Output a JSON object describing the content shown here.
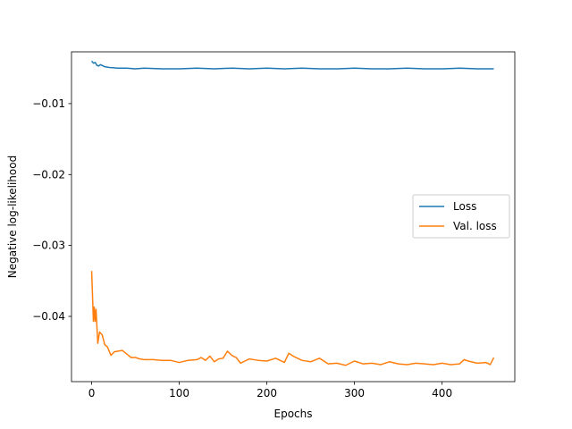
{
  "chart_data": {
    "type": "line",
    "xlabel": "Epochs",
    "ylabel": "Negative log-likelihood",
    "xlim": [
      -23,
      483
    ],
    "ylim": [
      -0.0492,
      -0.0027
    ],
    "xticks": [
      0,
      100,
      200,
      300,
      400
    ],
    "xtick_labels": [
      "0",
      "100",
      "200",
      "300",
      "400"
    ],
    "yticks": [
      -0.01,
      -0.02,
      -0.03,
      -0.04
    ],
    "ytick_labels": [
      "−0.01",
      "−0.02",
      "−0.03",
      "−0.04"
    ],
    "grid": false,
    "legend_position": "center-right",
    "series": [
      {
        "name": "Loss",
        "color": "#1f77b4",
        "x": [
          0,
          2,
          4,
          6,
          8,
          10,
          15,
          20,
          30,
          40,
          50,
          60,
          80,
          100,
          120,
          140,
          160,
          180,
          200,
          220,
          240,
          260,
          280,
          300,
          320,
          340,
          360,
          380,
          400,
          420,
          440,
          459
        ],
        "y": [
          -0.004,
          -0.0043,
          -0.0042,
          -0.0046,
          -0.0047,
          -0.0045,
          -0.0048,
          -0.0049,
          -0.005,
          -0.005,
          -0.0051,
          -0.005,
          -0.0051,
          -0.0051,
          -0.005,
          -0.0051,
          -0.005,
          -0.0051,
          -0.005,
          -0.0051,
          -0.005,
          -0.0051,
          -0.0051,
          -0.005,
          -0.0051,
          -0.0051,
          -0.005,
          -0.0051,
          -0.0051,
          -0.005,
          -0.0051,
          -0.0051
        ]
      },
      {
        "name": "Val. loss",
        "color": "#ff7f0e",
        "x": [
          0,
          2,
          3,
          4,
          5,
          7,
          9,
          12,
          15,
          18,
          22,
          26,
          30,
          35,
          40,
          45,
          50,
          55,
          60,
          70,
          80,
          90,
          100,
          110,
          120,
          125,
          130,
          135,
          140,
          145,
          150,
          155,
          160,
          165,
          170,
          180,
          190,
          200,
          210,
          220,
          225,
          230,
          240,
          250,
          260,
          270,
          280,
          290,
          300,
          310,
          320,
          330,
          340,
          350,
          360,
          370,
          380,
          390,
          400,
          410,
          420,
          425,
          430,
          440,
          450,
          455,
          459
        ],
        "y": [
          -0.0336,
          -0.0407,
          -0.0387,
          -0.0407,
          -0.039,
          -0.0438,
          -0.0422,
          -0.0426,
          -0.044,
          -0.0443,
          -0.0455,
          -0.045,
          -0.0449,
          -0.0448,
          -0.0453,
          -0.0458,
          -0.0458,
          -0.046,
          -0.0461,
          -0.0461,
          -0.0462,
          -0.0462,
          -0.0465,
          -0.0462,
          -0.0461,
          -0.0458,
          -0.0462,
          -0.0456,
          -0.0464,
          -0.046,
          -0.0459,
          -0.0449,
          -0.0455,
          -0.0458,
          -0.0466,
          -0.046,
          -0.0462,
          -0.0463,
          -0.0459,
          -0.0465,
          -0.0452,
          -0.0456,
          -0.0462,
          -0.0464,
          -0.0459,
          -0.0467,
          -0.0466,
          -0.0469,
          -0.0463,
          -0.0467,
          -0.0466,
          -0.0468,
          -0.0464,
          -0.0467,
          -0.0468,
          -0.0466,
          -0.0467,
          -0.0468,
          -0.0466,
          -0.0468,
          -0.0467,
          -0.0461,
          -0.0463,
          -0.0466,
          -0.0465,
          -0.0468,
          -0.0458
        ]
      }
    ]
  }
}
